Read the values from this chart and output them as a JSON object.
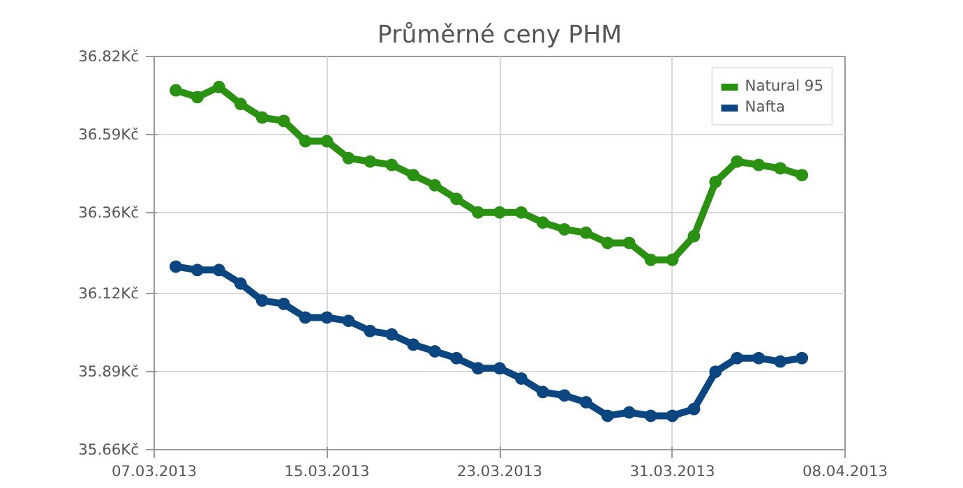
{
  "chart_data": {
    "type": "line",
    "title": "Průměrné ceny PHM",
    "x": [
      "2013-03-08",
      "2013-03-09",
      "2013-03-10",
      "2013-03-11",
      "2013-03-12",
      "2013-03-13",
      "2013-03-14",
      "2013-03-15",
      "2013-03-16",
      "2013-03-17",
      "2013-03-18",
      "2013-03-19",
      "2013-03-20",
      "2013-03-21",
      "2013-03-22",
      "2013-03-23",
      "2013-03-24",
      "2013-03-25",
      "2013-03-26",
      "2013-03-27",
      "2013-03-28",
      "2013-03-29",
      "2013-03-30",
      "2013-03-31",
      "2013-04-01",
      "2013-04-02",
      "2013-04-03",
      "2013-04-04",
      "2013-04-05",
      "2013-04-06"
    ],
    "series": [
      {
        "name": "Natural 95",
        "color": "#2b9113",
        "values": [
          36.72,
          36.7,
          36.73,
          36.68,
          36.64,
          36.63,
          36.57,
          36.57,
          36.52,
          36.51,
          36.5,
          36.47,
          36.44,
          36.4,
          36.36,
          36.36,
          36.36,
          36.33,
          36.31,
          36.3,
          36.27,
          36.27,
          36.22,
          36.22,
          36.29,
          36.45,
          36.51,
          36.5,
          36.49,
          36.47
        ]
      },
      {
        "name": "Nafta",
        "color": "#0b4680",
        "values": [
          36.2,
          36.19,
          36.19,
          36.15,
          36.1,
          36.09,
          36.05,
          36.05,
          36.04,
          36.01,
          36.0,
          35.97,
          35.95,
          35.93,
          35.9,
          35.9,
          35.87,
          35.83,
          35.82,
          35.8,
          35.76,
          35.77,
          35.76,
          35.76,
          35.78,
          35.89,
          35.93,
          35.93,
          35.92,
          35.93
        ]
      }
    ],
    "xlim": [
      "2013-03-07",
      "2013-04-08"
    ],
    "xticks": [
      {
        "value": "2013-03-07",
        "label": "07.03.2013"
      },
      {
        "value": "2013-03-15",
        "label": "15.03.2013"
      },
      {
        "value": "2013-03-23",
        "label": "23.03.2013"
      },
      {
        "value": "2013-03-31",
        "label": "31.03.2013"
      },
      {
        "value": "2013-04-08",
        "label": "08.04.2013"
      }
    ],
    "ylim": [
      35.66,
      36.82
    ],
    "yticks": [
      {
        "value": 35.66,
        "label": "35.66Kč"
      },
      {
        "value": 35.89,
        "label": "35.89Kč"
      },
      {
        "value": 36.12,
        "label": "36.12Kč"
      },
      {
        "value": 36.36,
        "label": "36.36Kč"
      },
      {
        "value": 36.59,
        "label": "36.59Kč"
      },
      {
        "value": 36.82,
        "label": "36.82Kč"
      }
    ],
    "grid": true,
    "legend": "top right",
    "marker": "circle",
    "line_style": "solid"
  }
}
